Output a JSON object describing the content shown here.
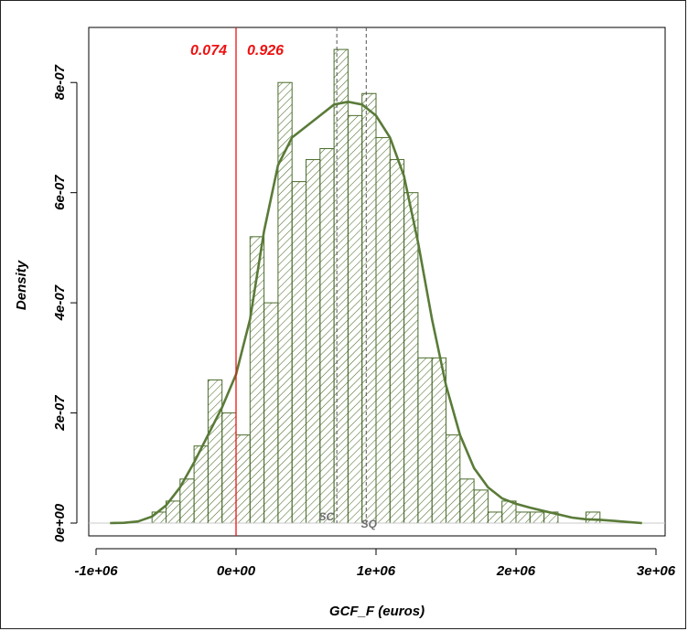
{
  "chart_data": {
    "type": "histogram",
    "xlabel": "GCF_F (euros)",
    "ylabel": "Density",
    "xlim": [
      -1000000,
      3000000
    ],
    "ylim": [
      0,
      9e-07
    ],
    "x_ticks": [
      -1000000,
      0,
      1000000,
      2000000,
      3000000
    ],
    "x_tick_labels": [
      "-1e+06",
      "0e+00",
      "1e+06",
      "2e+06",
      "3e+06"
    ],
    "y_ticks": [
      0,
      2e-07,
      4e-07,
      6e-07,
      8e-07
    ],
    "y_tick_labels": [
      "0e+00",
      "2e-07",
      "4e-07",
      "6e-07",
      "8e-07"
    ],
    "bin_width": 100000,
    "bins_start": [
      -600000,
      -500000,
      -400000,
      -300000,
      -200000,
      -100000,
      0,
      100000,
      200000,
      300000,
      400000,
      500000,
      600000,
      700000,
      800000,
      900000,
      1000000,
      1100000,
      1200000,
      1300000,
      1400000,
      1500000,
      1600000,
      1700000,
      1800000,
      1900000,
      2000000,
      2100000,
      2200000,
      2300000,
      2400000,
      2500000
    ],
    "density": [
      2e-08,
      4e-08,
      8e-08,
      1.4e-07,
      2.6e-07,
      2e-07,
      1.6e-07,
      5.2e-07,
      4e-07,
      8e-07,
      6.2e-07,
      6.6e-07,
      6.8e-07,
      8.6e-07,
      7.4e-07,
      7.8e-07,
      7e-07,
      6.6e-07,
      6e-07,
      3e-07,
      3e-07,
      1.6e-07,
      8e-08,
      6e-08,
      2e-08,
      4e-08,
      2e-08,
      2e-08,
      2e-08,
      0.0,
      0.0,
      2e-08
    ],
    "density_curve": {
      "x": [
        -900000,
        -800000,
        -700000,
        -600000,
        -500000,
        -400000,
        -300000,
        -200000,
        -100000,
        0,
        100000,
        200000,
        300000,
        400000,
        500000,
        600000,
        700000,
        800000,
        900000,
        1000000,
        1100000,
        1200000,
        1300000,
        1400000,
        1500000,
        1600000,
        1700000,
        1800000,
        1900000,
        2000000,
        2100000,
        2200000,
        2300000,
        2400000,
        2500000,
        2600000,
        2700000,
        2800000,
        2900000
      ],
      "y": [
        0.0,
        5e-10,
        3e-09,
        1.2e-08,
        3.2e-08,
        6.5e-08,
        1.1e-07,
        1.6e-07,
        2.1e-07,
        2.7e-07,
        3.7e-07,
        5.3e-07,
        6.5e-07,
        7e-07,
        7.2e-07,
        7.4e-07,
        7.6e-07,
        7.65e-07,
        7.6e-07,
        7.4e-07,
        7e-07,
        6.3e-07,
        5.1e-07,
        3.7e-07,
        2.5e-07,
        1.6e-07,
        1e-07,
        6.5e-08,
        4.5e-08,
        3.5e-08,
        2.8e-08,
        2.2e-08,
        1.6e-08,
        1e-08,
        7e-09,
        6e-09,
        4e-09,
        2e-09,
        0.0
      ]
    },
    "threshold": {
      "x": 0,
      "left_probability": "0.074",
      "right_probability": "0.926"
    },
    "markers": [
      {
        "label": "SC",
        "x": 720000
      },
      {
        "label": "SQ",
        "x": 930000
      }
    ],
    "grid": false,
    "legend": false
  },
  "colors": {
    "bars": "#4a6b2a",
    "curve": "#5a7b38",
    "threshold": "#ee1111",
    "markers": "#555555",
    "marker_labels": "#707070"
  }
}
